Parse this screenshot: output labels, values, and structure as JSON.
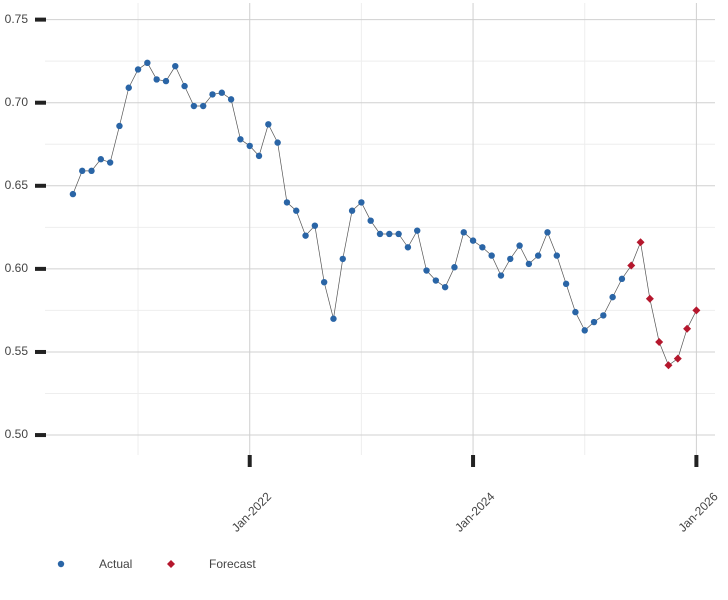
{
  "chart_data": {
    "type": "line",
    "series": [
      {
        "name": "Actual",
        "color": "#2a65a6",
        "marker": "circle",
        "x": [
          "2020-06",
          "2020-07",
          "2020-08",
          "2020-09",
          "2020-10",
          "2020-11",
          "2020-12",
          "2021-01",
          "2021-02",
          "2021-03",
          "2021-04",
          "2021-05",
          "2021-06",
          "2021-07",
          "2021-08",
          "2021-09",
          "2021-10",
          "2021-11",
          "2021-12",
          "2022-01",
          "2022-02",
          "2022-03",
          "2022-04",
          "2022-05",
          "2022-06",
          "2022-07",
          "2022-08",
          "2022-09",
          "2022-10",
          "2022-11",
          "2022-12",
          "2023-01",
          "2023-02",
          "2023-03",
          "2023-04",
          "2023-05",
          "2023-06",
          "2023-07",
          "2023-08",
          "2023-09",
          "2023-10",
          "2023-11",
          "2023-12",
          "2024-01",
          "2024-02",
          "2024-03",
          "2024-04",
          "2024-05",
          "2024-06",
          "2024-07",
          "2024-08",
          "2024-09",
          "2024-10",
          "2024-11",
          "2024-12",
          "2025-01",
          "2025-02",
          "2025-03",
          "2025-04",
          "2025-05"
        ],
        "values": [
          0.645,
          0.659,
          0.659,
          0.666,
          0.664,
          0.686,
          0.709,
          0.72,
          0.724,
          0.714,
          0.713,
          0.722,
          0.71,
          0.698,
          0.698,
          0.705,
          0.706,
          0.702,
          0.678,
          0.674,
          0.668,
          0.687,
          0.676,
          0.64,
          0.635,
          0.62,
          0.626,
          0.592,
          0.57,
          0.606,
          0.635,
          0.64,
          0.629,
          0.621,
          0.621,
          0.621,
          0.613,
          0.623,
          0.599,
          0.593,
          0.589,
          0.601,
          0.622,
          0.617,
          0.613,
          0.608,
          0.596,
          0.606,
          0.614,
          0.603,
          0.608,
          0.622,
          0.608,
          0.591,
          0.574,
          0.563,
          0.568,
          0.572,
          0.583,
          0.594
        ]
      },
      {
        "name": "Forecast",
        "color": "#b5172d",
        "marker": "diamond",
        "x": [
          "2025-06",
          "2025-07",
          "2025-08",
          "2025-09",
          "2025-10",
          "2025-11",
          "2025-12",
          "2026-01"
        ],
        "values": [
          0.602,
          0.616,
          0.582,
          0.556,
          0.542,
          0.546,
          0.564,
          0.575
        ]
      }
    ],
    "xlim": [
      "2020-03",
      "2026-03"
    ],
    "xticks": [
      {
        "value": "2022-01",
        "label": "Jan-2022"
      },
      {
        "value": "2024-01",
        "label": "Jan-2024"
      },
      {
        "value": "2026-01",
        "label": "Jan-2026"
      }
    ],
    "x_minor_ticks": [
      "2021-01",
      "2023-01",
      "2025-01"
    ],
    "ylim": [
      0.488,
      0.76
    ],
    "yticks": [
      {
        "value": 0.5,
        "label": "0.50"
      },
      {
        "value": 0.55,
        "label": "0.55"
      },
      {
        "value": 0.6,
        "label": "0.60"
      },
      {
        "value": 0.65,
        "label": "0.65"
      },
      {
        "value": 0.7,
        "label": "0.70"
      },
      {
        "value": 0.75,
        "label": "0.75"
      }
    ],
    "y_minor_ticks": [
      0.525,
      0.575,
      0.625,
      0.675,
      0.725
    ],
    "grid": true,
    "legend": "bottom-left"
  }
}
